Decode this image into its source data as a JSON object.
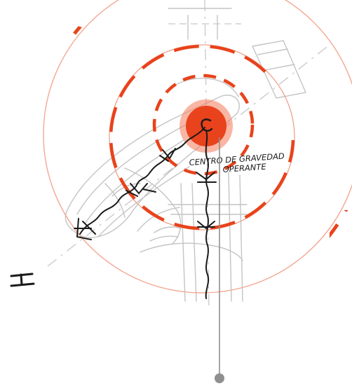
{
  "annotation": {
    "line1": "CENTRO DE GRAVEDAD",
    "line2": "OPERANTE"
  },
  "side_mark": "H",
  "colors": {
    "accent": "#e8431c",
    "accent_soft": "#f0a08a",
    "ink": "#1a1a1a",
    "sketch": "#b8b8b8",
    "callout": "#8f8f8f"
  }
}
